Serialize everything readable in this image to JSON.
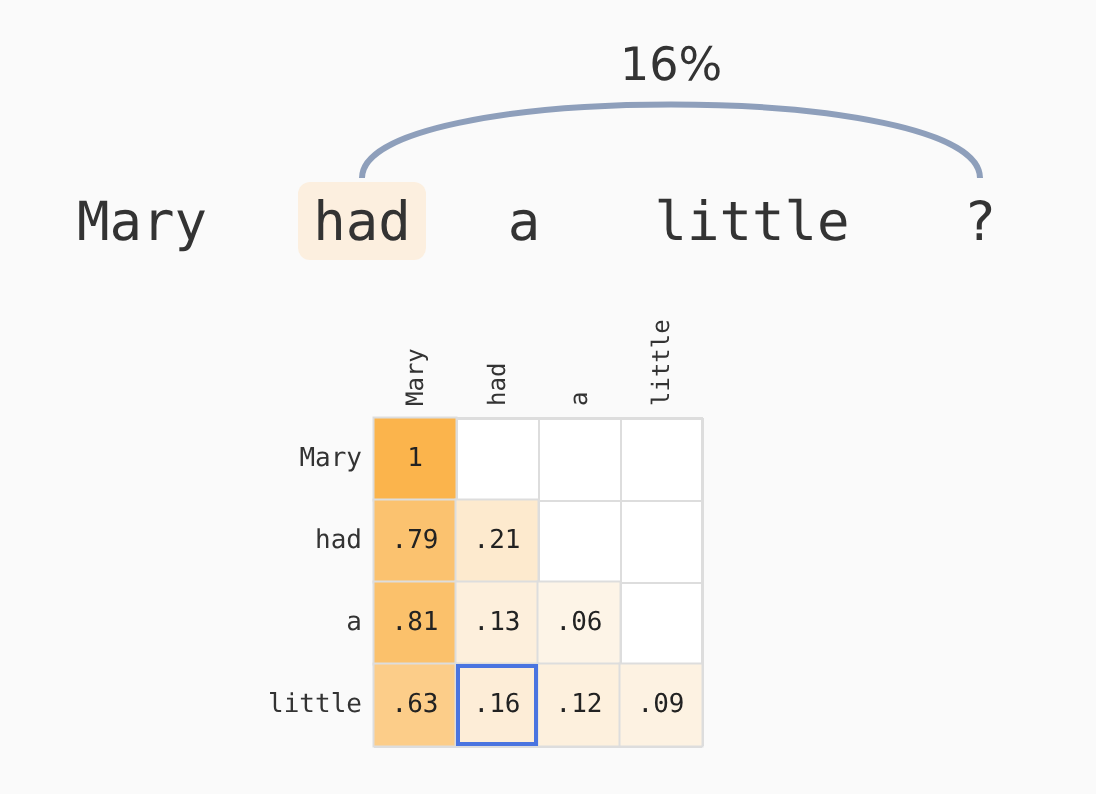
{
  "chart_data": {
    "type": "heatmap",
    "annotations": [
      "Mary",
      "had",
      "a",
      "little",
      "?",
      "16%"
    ],
    "categories": [
      "Mary",
      "had",
      "a",
      "little"
    ],
    "y_categories": [
      "Mary",
      "had",
      "a",
      "little"
    ],
    "cells": [
      [
        1,
        null,
        null,
        null
      ],
      [
        0.79,
        0.21,
        null,
        null
      ],
      [
        0.81,
        0.13,
        0.06,
        null
      ],
      [
        0.63,
        0.16,
        0.12,
        0.09
      ]
    ],
    "cell_labels": [
      [
        "1",
        null,
        null,
        null
      ],
      [
        ".79",
        ".21",
        null,
        null
      ],
      [
        ".81",
        ".13",
        ".06",
        null
      ],
      [
        ".63",
        ".16",
        ".12",
        ".09"
      ]
    ]
  }
}
